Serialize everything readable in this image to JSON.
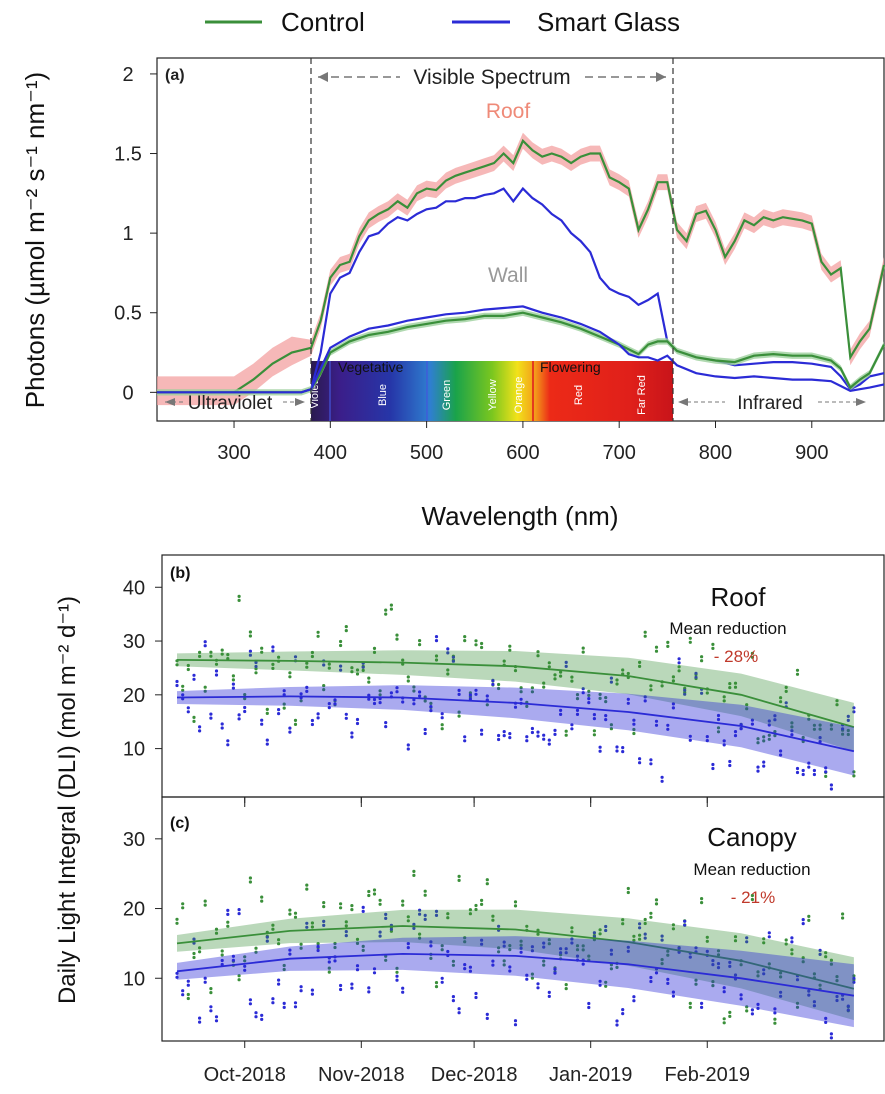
{
  "legend": {
    "control_label": "Control",
    "smart_label": "Smart Glass",
    "control_color": "#3a8f3a",
    "smart_color": "#2b2bd6"
  },
  "chart_data": [
    {
      "type": "line",
      "panel_label": "(a)",
      "xlabel": "Wavelength (nm)",
      "ylabel": "Photons (µmol m⁻² s⁻¹ nm⁻¹)",
      "xlim": [
        220,
        975
      ],
      "ylim": [
        -0.18,
        2.1
      ],
      "xticks": [
        300,
        400,
        500,
        600,
        700,
        800,
        900
      ],
      "yticks": [
        0,
        0.5,
        1,
        1.5,
        2
      ],
      "ytick_labels": [
        "0",
        "0.5",
        "1",
        "1.5",
        "2"
      ],
      "annotations": {
        "visible": "Visible Spectrum",
        "roof": "Roof",
        "wall": "Wall",
        "ultraviolet": "Ultraviolet",
        "infrared": "Infrared",
        "vegetative": "Vegetative",
        "flowering": "Flowering",
        "bands": [
          "Violet",
          "Blue",
          "Green",
          "Yellow",
          "Orange",
          "Red",
          "Far Red"
        ]
      },
      "series": [
        {
          "name": "Control",
          "location": "Roof",
          "x": [
            220,
            300,
            320,
            340,
            360,
            380,
            390,
            400,
            410,
            420,
            430,
            440,
            450,
            460,
            470,
            480,
            490,
            500,
            510,
            520,
            530,
            540,
            550,
            560,
            570,
            580,
            590,
            600,
            610,
            620,
            630,
            640,
            650,
            660,
            670,
            680,
            690,
            700,
            710,
            720,
            730,
            740,
            750,
            760,
            770,
            780,
            790,
            800,
            810,
            820,
            830,
            840,
            850,
            860,
            870,
            880,
            890,
            900,
            910,
            920,
            930,
            940,
            950,
            960,
            975
          ],
          "y": [
            0,
            0,
            0.08,
            0.18,
            0.25,
            0.28,
            0.45,
            0.72,
            0.8,
            0.82,
            0.98,
            1.08,
            1.12,
            1.15,
            1.2,
            1.16,
            1.25,
            1.28,
            1.27,
            1.33,
            1.36,
            1.38,
            1.4,
            1.42,
            1.44,
            1.5,
            1.44,
            1.58,
            1.52,
            1.48,
            1.5,
            1.48,
            1.44,
            1.48,
            1.5,
            1.5,
            1.35,
            1.32,
            1.28,
            1.02,
            1.15,
            1.32,
            1.32,
            1.02,
            0.95,
            1.12,
            1.14,
            1.02,
            0.85,
            0.95,
            1.08,
            1.05,
            1.1,
            1.08,
            1.1,
            1.09,
            1.08,
            1.06,
            0.82,
            0.74,
            0.78,
            0.22,
            0.32,
            0.4,
            0.8
          ]
        },
        {
          "name": "Smart Glass",
          "location": "Roof",
          "x": [
            220,
            300,
            340,
            370,
            380,
            390,
            400,
            410,
            420,
            430,
            440,
            450,
            460,
            470,
            480,
            490,
            500,
            510,
            520,
            530,
            540,
            550,
            560,
            570,
            580,
            590,
            600,
            610,
            620,
            630,
            640,
            650,
            660,
            670,
            680,
            690,
            700,
            710,
            720,
            730,
            740,
            750,
            760,
            780,
            800,
            820,
            840,
            860,
            880,
            900,
            920,
            930,
            940,
            950,
            960,
            975
          ],
          "y": [
            0,
            0,
            0,
            0,
            0.02,
            0.25,
            0.62,
            0.72,
            0.75,
            0.88,
            0.98,
            1.0,
            1.06,
            1.1,
            1.08,
            1.12,
            1.15,
            1.16,
            1.2,
            1.2,
            1.22,
            1.22,
            1.24,
            1.25,
            1.28,
            1.2,
            1.28,
            1.22,
            1.18,
            1.12,
            1.08,
            1.0,
            0.95,
            0.88,
            0.72,
            0.65,
            0.62,
            0.6,
            0.55,
            0.58,
            0.62,
            0.32,
            0.26,
            0.22,
            0.2,
            0.17,
            0.18,
            0.19,
            0.19,
            0.18,
            0.16,
            0.1,
            0.02,
            0.05,
            0.1,
            0.12
          ]
        },
        {
          "name": "Control",
          "location": "Wall",
          "x": [
            220,
            370,
            380,
            390,
            400,
            420,
            440,
            460,
            480,
            500,
            520,
            540,
            560,
            580,
            600,
            620,
            640,
            660,
            680,
            700,
            710,
            720,
            730,
            740,
            750,
            760,
            780,
            800,
            820,
            840,
            860,
            880,
            900,
            920,
            930,
            940,
            950,
            960,
            975
          ],
          "y": [
            0,
            0,
            0.02,
            0.12,
            0.25,
            0.32,
            0.36,
            0.38,
            0.41,
            0.43,
            0.45,
            0.46,
            0.48,
            0.48,
            0.5,
            0.47,
            0.44,
            0.4,
            0.35,
            0.3,
            0.27,
            0.24,
            0.3,
            0.32,
            0.32,
            0.26,
            0.22,
            0.2,
            0.19,
            0.23,
            0.24,
            0.23,
            0.23,
            0.2,
            0.15,
            0.03,
            0.08,
            0.12,
            0.3
          ]
        },
        {
          "name": "Smart Glass",
          "location": "Wall",
          "x": [
            220,
            370,
            380,
            390,
            400,
            420,
            440,
            460,
            480,
            500,
            520,
            540,
            560,
            580,
            600,
            620,
            640,
            660,
            680,
            700,
            710,
            720,
            730,
            740,
            750,
            760,
            780,
            800,
            820,
            840,
            860,
            880,
            900,
            920,
            930,
            940,
            950,
            960,
            975
          ],
          "y": [
            0,
            0,
            0.02,
            0.15,
            0.28,
            0.35,
            0.4,
            0.42,
            0.45,
            0.47,
            0.49,
            0.5,
            0.52,
            0.53,
            0.54,
            0.5,
            0.47,
            0.43,
            0.38,
            0.3,
            0.24,
            0.22,
            0.22,
            0.2,
            0.23,
            0.17,
            0.12,
            0.1,
            0.09,
            0.1,
            0.09,
            0.08,
            0.08,
            0.07,
            0.04,
            0.01,
            0.02,
            0.03,
            0.05
          ]
        }
      ]
    },
    {
      "type": "scatter",
      "panel_label": "(b)",
      "title": "Roof",
      "subtitle": "Mean reduction",
      "reduction": "- 28%",
      "ylim": [
        1,
        46
      ],
      "yticks": [
        10,
        20,
        30,
        40
      ],
      "fit": {
        "Control": {
          "x": [
            0,
            30,
            60,
            90,
            120,
            150,
            180
          ],
          "y": [
            26.5,
            26.3,
            26.0,
            25.3,
            23.5,
            20.0,
            14.0
          ]
        },
        "Smart Glass": {
          "x": [
            0,
            30,
            60,
            90,
            120,
            150,
            180
          ],
          "y": [
            19.5,
            19.7,
            19.5,
            18.5,
            16.8,
            14.2,
            9.5
          ]
        }
      }
    },
    {
      "type": "scatter",
      "panel_label": "(c)",
      "title": "Canopy",
      "subtitle": "Mean reduction",
      "reduction": "- 21%",
      "ylim": [
        1,
        36
      ],
      "yticks": [
        10,
        20,
        30
      ],
      "fit": {
        "Control": {
          "x": [
            0,
            30,
            60,
            90,
            120,
            150,
            180
          ],
          "y": [
            15.0,
            16.8,
            17.5,
            17.0,
            15.2,
            12.5,
            8.5
          ]
        },
        "Smart Glass": {
          "x": [
            0,
            30,
            60,
            90,
            120,
            150,
            180
          ],
          "y": [
            11.0,
            12.8,
            13.5,
            13.2,
            12.0,
            10.0,
            7.5
          ]
        }
      }
    }
  ],
  "shared_ylabel": "Daily Light Integral (DLI) (mol m⁻² d⁻¹)",
  "time_axis": {
    "labels": [
      "Oct-2018",
      "Nov-2018",
      "Dec-2018",
      "Jan-2019",
      "Feb-2019"
    ],
    "days": [
      18,
      49,
      79,
      110,
      141
    ],
    "xlim": [
      -4,
      188
    ]
  }
}
